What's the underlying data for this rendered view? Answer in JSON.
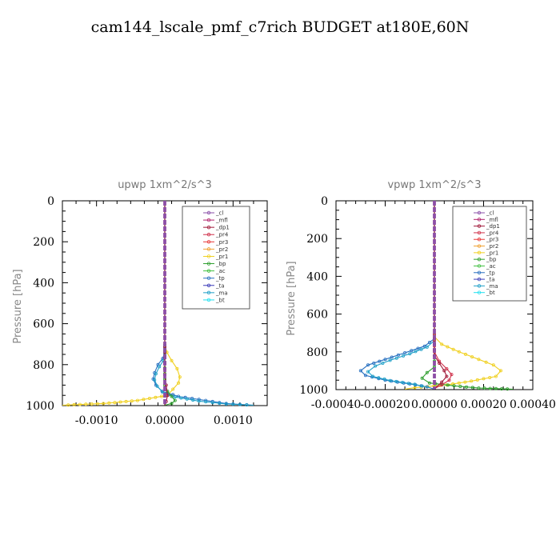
{
  "figure": {
    "title": "cam144_lscale_pmf_c7rich  BUDGET at180E,60N"
  },
  "legend_entries": [
    {
      "label": "_cl",
      "color": "#8a4fa8",
      "marker": "circle"
    },
    {
      "label": "_mfl",
      "color": "#b0206a",
      "marker": "circle"
    },
    {
      "label": "_dp1",
      "color": "#a01838",
      "marker": "diamond"
    },
    {
      "label": "_pr4",
      "color": "#d0304a",
      "marker": "triangle-up"
    },
    {
      "label": "_pr3",
      "color": "#e83838",
      "marker": "triangle-down"
    },
    {
      "label": "_pr2",
      "color": "#f0a030",
      "marker": "triangle-up"
    },
    {
      "label": "_pr1",
      "color": "#f0d020",
      "marker": "square"
    },
    {
      "label": "_bp",
      "color": "#2e9e2e",
      "marker": "x"
    },
    {
      "label": "_ac",
      "color": "#40c040",
      "marker": "circle"
    },
    {
      "label": "_tp",
      "color": "#2870c0",
      "marker": "star"
    },
    {
      "label": "_ta",
      "color": "#3a3ab8",
      "marker": "arrow"
    },
    {
      "label": "_ma",
      "color": "#20a0c8",
      "marker": "dash"
    },
    {
      "label": "_bt",
      "color": "#20e0f0",
      "marker": "diamond-filled"
    }
  ],
  "chart_data": [
    {
      "type": "line",
      "title": "upwp   1xm^2/s^3",
      "ylabel": "Pressure [hPa]",
      "xlabel": "",
      "xlim": [
        -0.0015,
        0.0015
      ],
      "ylim": [
        1000,
        0
      ],
      "xticks": [
        -0.001,
        0.0,
        0.001
      ],
      "xtick_labels": [
        "-0.0010",
        "0.0000",
        "0.0010"
      ],
      "yticks": [
        0,
        200,
        400,
        600,
        800,
        1000
      ],
      "ytick_labels": [
        "0",
        "200",
        "400",
        "600",
        "800",
        "1000"
      ],
      "legend": "top-right",
      "series": [
        {
          "name": "_pr1",
          "color": "#f0d020",
          "x": [
            0,
            0,
            3e-05,
            0.0001,
            0.00018,
            0.00022,
            0.0002,
            0.00012,
            4e-05,
            -0.0004,
            -0.0009,
            -0.0015
          ],
          "y": [
            0,
            700,
            740,
            780,
            820,
            860,
            890,
            920,
            950,
            975,
            990,
            998
          ]
        },
        {
          "name": "_tp",
          "color": "#2870c0",
          "x": [
            0,
            0,
            -3e-05,
            -0.0001,
            -0.00015,
            -0.00017,
            -0.00013,
            -4e-05,
            0.0002,
            0.0006,
            0.0009,
            0.0013
          ],
          "y": [
            0,
            740,
            770,
            800,
            840,
            870,
            900,
            930,
            955,
            975,
            990,
            998
          ]
        },
        {
          "name": "_ma",
          "color": "#20a0c8",
          "x": [
            0,
            0,
            -2e-05,
            -8e-05,
            -0.00013,
            -0.00015,
            -0.00011,
            -3e-05,
            0.00015,
            0.0005,
            0.0009,
            0.0013
          ],
          "y": [
            0,
            750,
            780,
            810,
            845,
            875,
            905,
            935,
            958,
            978,
            992,
            998
          ]
        },
        {
          "name": "_bp",
          "color": "#2e9e2e",
          "x": [
            0,
            0,
            4e-05,
            0.0001,
            0.00015,
            0.0001,
            0.0
          ],
          "y": [
            0,
            900,
            930,
            955,
            975,
            990,
            998
          ]
        },
        {
          "name": "_dp1",
          "color": "#a01838",
          "x": [
            0,
            0,
            2e-05,
            4e-05,
            2e-05,
            0
          ],
          "y": [
            0,
            850,
            900,
            950,
            980,
            998
          ]
        },
        {
          "name": "_mfl",
          "color": "#b0206a",
          "x": [
            0,
            0
          ],
          "y": [
            0,
            998
          ]
        },
        {
          "name": "_cl",
          "color": "#8a4fa8",
          "x": [
            0,
            0
          ],
          "y": [
            0,
            998
          ]
        }
      ]
    },
    {
      "type": "line",
      "title": "vpwp   1xm^2/s^3",
      "ylabel": "Pressure [hPa]",
      "xlabel": "",
      "xlim": [
        -0.0004,
        0.0004
      ],
      "ylim": [
        1000,
        0
      ],
      "xticks": [
        -0.0004,
        -0.0002,
        0.0,
        0.0002,
        0.0004
      ],
      "xtick_labels": [
        "-0.00040",
        "-0.00020",
        "0.00000",
        "0.00020",
        "0.00040"
      ],
      "yticks": [
        0,
        200,
        400,
        600,
        800,
        1000
      ],
      "ytick_labels": [
        "0",
        "200",
        "400",
        "600",
        "800",
        "1000"
      ],
      "legend": "top-right",
      "series": [
        {
          "name": "_pr1",
          "color": "#f0d020",
          "x": [
            0,
            0,
            3e-05,
            0.0001,
            0.00018,
            0.00024,
            0.00027,
            0.00025,
            0.00015,
            5e-05,
            -8e-05,
            -0.00012
          ],
          "y": [
            0,
            720,
            760,
            800,
            840,
            870,
            900,
            930,
            955,
            975,
            990,
            998
          ]
        },
        {
          "name": "_tp",
          "color": "#2870c0",
          "x": [
            0,
            0,
            -4e-05,
            -0.00012,
            -0.0002,
            -0.00027,
            -0.0003,
            -0.00028,
            -0.0002,
            -0.0001,
            -3e-05,
            0.0
          ],
          "y": [
            0,
            730,
            770,
            805,
            840,
            870,
            900,
            925,
            950,
            970,
            985,
            998
          ]
        },
        {
          "name": "_ma",
          "color": "#20a0c8",
          "x": [
            0,
            0,
            -3e-05,
            -0.0001,
            -0.00018,
            -0.00024,
            -0.00027,
            -0.00025,
            -0.00018,
            -8e-05,
            -2e-05
          ],
          "y": [
            0,
            740,
            775,
            810,
            845,
            875,
            905,
            930,
            952,
            972,
            990
          ]
        },
        {
          "name": "_bp",
          "color": "#2e9e2e",
          "x": [
            0,
            0,
            -3e-05,
            -5e-05,
            -2e-05,
            8e-05,
            0.00018,
            0.00032
          ],
          "y": [
            0,
            880,
            910,
            940,
            965,
            980,
            992,
            998
          ]
        },
        {
          "name": "_pr4",
          "color": "#d0304a",
          "x": [
            0,
            0,
            2e-05,
            5e-05,
            7e-05,
            6e-05,
            3e-05,
            0.0
          ],
          "y": [
            0,
            800,
            850,
            890,
            920,
            950,
            975,
            995
          ]
        },
        {
          "name": "_dp1",
          "color": "#a01838",
          "x": [
            0,
            0,
            2e-05,
            4e-05,
            5e-05,
            3e-05,
            0.0
          ],
          "y": [
            0,
            820,
            860,
            900,
            930,
            960,
            995
          ]
        },
        {
          "name": "_mfl",
          "color": "#b0206a",
          "x": [
            0,
            0
          ],
          "y": [
            0,
            998
          ]
        },
        {
          "name": "_cl",
          "color": "#8a4fa8",
          "x": [
            0,
            0
          ],
          "y": [
            0,
            998
          ]
        }
      ]
    }
  ]
}
